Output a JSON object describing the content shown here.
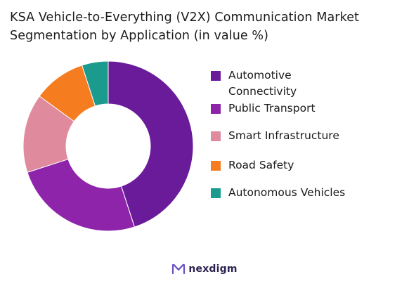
{
  "chart_data": {
    "type": "donut",
    "title_lines": [
      "KSA Vehicle-to-Everything (V2X) Communication Market",
      "Segmentation by Application (in value %)"
    ],
    "series": [
      {
        "name": "Automotive Connectivity",
        "value": 45,
        "color": "#6a1b9a"
      },
      {
        "name": "Public Transport",
        "value": 25,
        "color": "#8e24aa"
      },
      {
        "name": "Smart Infrastructure",
        "value": 15,
        "color": "#e08a9e"
      },
      {
        "name": "Road Safety",
        "value": 10,
        "color": "#f57c1f"
      },
      {
        "name": "Autonomous Vehicles",
        "value": 5,
        "color": "#1b9a8e"
      }
    ],
    "legend_position": "right",
    "start_angle": "top, clockwise"
  },
  "legend": {
    "items": [
      {
        "label": "Automotive Connectivity",
        "color": "#6a1b9a"
      },
      {
        "label": "Public Transport",
        "color": "#8e24aa"
      },
      {
        "label": "Smart Infrastructure",
        "color": "#e08a9e"
      },
      {
        "label": "Road Safety",
        "color": "#f57c1f"
      },
      {
        "label": "Autonomous Vehicles",
        "color": "#1b9a8e"
      }
    ]
  },
  "footer": {
    "brand": "nexdigm",
    "brand_color": "#2d2350",
    "logo_icon": "nexdigm-logo-icon"
  }
}
